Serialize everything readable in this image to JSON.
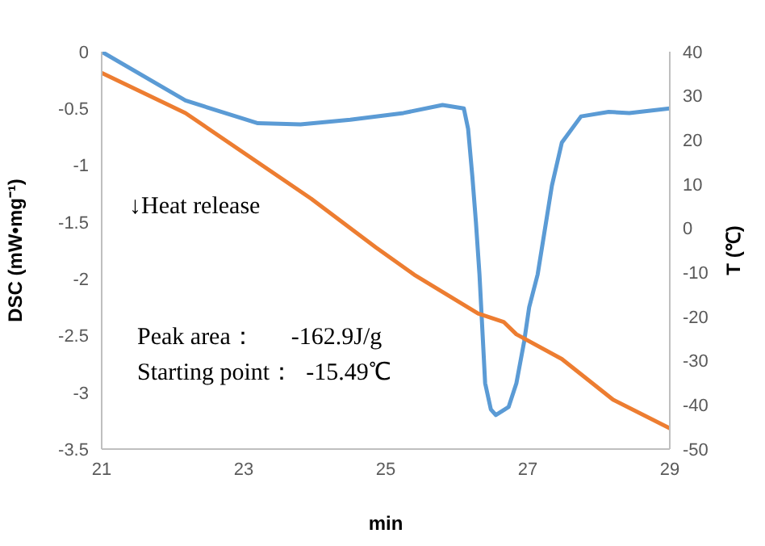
{
  "chart_data": {
    "type": "line",
    "xlabel": "min",
    "ylabel": "DSC (mW•mg⁻¹)",
    "y2label": "T (℃)",
    "xlim": [
      21,
      29
    ],
    "xticks": [
      21,
      23,
      25,
      27,
      29
    ],
    "ylim": [
      -3.5,
      0
    ],
    "yticks": [
      0,
      -0.5,
      -1,
      -1.5,
      -2,
      -2.5,
      -3,
      -3.5
    ],
    "y2lim": [
      -50,
      40
    ],
    "y2ticks": [
      40,
      30,
      20,
      10,
      0,
      -10,
      -20,
      -30,
      -40,
      -50
    ],
    "marker": "none",
    "line_style": "solid",
    "series": [
      {
        "color": "#5b9bd5",
        "x": [
          21,
          22.18,
          23.2,
          23.8,
          24.5,
          25.25,
          25.8,
          26.1,
          26.16,
          26.22,
          26.27,
          26.32,
          26.4,
          26.48,
          26.55,
          26.73,
          26.84,
          26.95,
          27.02,
          27.14,
          27.34,
          27.48,
          27.75,
          28.14,
          28.43,
          29
        ],
        "values": [
          0,
          -0.43,
          -0.63,
          -0.64,
          -0.6,
          -0.54,
          -0.47,
          -0.5,
          -0.68,
          -1.1,
          -1.5,
          -1.96,
          -2.92,
          -3.15,
          -3.2,
          -3.13,
          -2.92,
          -2.55,
          -2.25,
          -1.96,
          -1.18,
          -0.8,
          -0.57,
          -0.53,
          -0.54,
          -0.5
        ]
      },
      {
        "color": "#ed7d31",
        "axis": "y2",
        "x": [
          21,
          22.18,
          23.95,
          24.86,
          25.4,
          26.3,
          26.66,
          26.84,
          27.48,
          28.2,
          29
        ],
        "values": [
          35.2,
          26.1,
          6.7,
          -4.3,
          -10.5,
          -19.3,
          -21.2,
          -24,
          -29.6,
          -38.8,
          -45.3
        ]
      }
    ],
    "annotations": [
      "↓Heat release",
      "Peak area：      -162.9J/g",
      "Starting point：  -15.49℃"
    ]
  }
}
